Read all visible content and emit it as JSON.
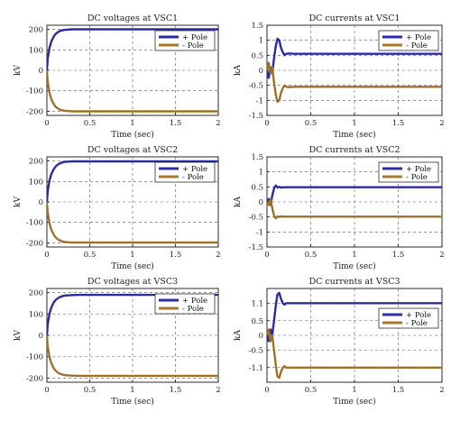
{
  "colors": {
    "plus_pole": "#2b2ea6",
    "minus_pole": "#a9782f"
  },
  "chart_data": [
    {
      "type": "line",
      "title": "DC voltages at VSC1",
      "xlabel": "Time (sec)",
      "ylabel": "kV",
      "xlim": [
        0,
        2
      ],
      "ylim": [
        -220,
        220
      ],
      "xticks": [
        0,
        0.5,
        1,
        1.5,
        2
      ],
      "xtick_labels": [
        "0",
        "0.5",
        "1",
        "1.5",
        "2"
      ],
      "yticks": [
        200,
        100,
        0,
        -100,
        -200
      ],
      "ytick_labels": [
        "200",
        "100",
        "0",
        "-100",
        "-200"
      ],
      "grid": true,
      "legend_position": "top-right",
      "series": [
        {
          "name": "+ Pole",
          "x": [
            0,
            0.01,
            0.03,
            0.05,
            0.08,
            0.1,
            0.13,
            0.16,
            0.2,
            0.25,
            0.3,
            0.4,
            2
          ],
          "y": [
            0,
            60,
            110,
            140,
            165,
            177,
            187,
            193,
            197,
            199,
            200,
            200,
            200
          ]
        },
        {
          "name": "- Pole",
          "x": [
            0,
            0.01,
            0.03,
            0.05,
            0.08,
            0.1,
            0.13,
            0.16,
            0.2,
            0.25,
            0.3,
            0.4,
            2
          ],
          "y": [
            0,
            -60,
            -110,
            -140,
            -165,
            -177,
            -187,
            -193,
            -197,
            -199,
            -200,
            -200,
            -200
          ]
        }
      ]
    },
    {
      "type": "line",
      "title": "DC currents at VSC1",
      "xlabel": "Time (sec)",
      "ylabel": "kA",
      "xlim": [
        0,
        2
      ],
      "ylim": [
        -1.5,
        1.5
      ],
      "xticks": [
        0,
        0.5,
        1,
        1.5,
        2
      ],
      "xtick_labels": [
        "0",
        "0.5",
        "1",
        "1.5",
        "2"
      ],
      "yticks": [
        1.5,
        1,
        0.5,
        0,
        -0.5,
        -1,
        -1.5
      ],
      "ytick_labels": [
        "1.5",
        "1",
        "0.5",
        "0",
        "-0.5",
        "-1",
        "-1.5"
      ],
      "grid": true,
      "legend_position": "top-right",
      "series": [
        {
          "name": "+ Pole",
          "x": [
            0,
            0.02,
            0.04,
            0.06,
            0.08,
            0.1,
            0.12,
            0.14,
            0.16,
            0.18,
            0.2,
            0.22,
            0.25,
            0.3,
            2
          ],
          "y": [
            0,
            -0.25,
            0.1,
            -0.1,
            0.4,
            0.8,
            1.05,
            1.0,
            0.75,
            0.6,
            0.5,
            0.55,
            0.56,
            0.55,
            0.55
          ]
        },
        {
          "name": "- Pole",
          "x": [
            0,
            0.02,
            0.04,
            0.06,
            0.08,
            0.1,
            0.12,
            0.14,
            0.16,
            0.18,
            0.2,
            0.22,
            0.25,
            0.3,
            2
          ],
          "y": [
            0,
            0.25,
            -0.1,
            0.1,
            -0.4,
            -0.8,
            -1.05,
            -1.0,
            -0.75,
            -0.6,
            -0.5,
            -0.55,
            -0.56,
            -0.55,
            -0.55
          ]
        }
      ]
    },
    {
      "type": "line",
      "title": "DC voltages at VSC2",
      "xlabel": "Time (sec)",
      "ylabel": "kV",
      "xlim": [
        0,
        2
      ],
      "ylim": [
        -220,
        220
      ],
      "xticks": [
        0,
        0.5,
        1,
        1.5,
        2
      ],
      "xtick_labels": [
        "0",
        "0.5",
        "1",
        "1.5",
        "2"
      ],
      "yticks": [
        200,
        100,
        0,
        -100,
        -200
      ],
      "ytick_labels": [
        "200",
        "100",
        "0",
        "-100",
        "-200"
      ],
      "grid": true,
      "legend_position": "top-right",
      "series": [
        {
          "name": "+ Pole",
          "x": [
            0,
            0.01,
            0.03,
            0.05,
            0.08,
            0.1,
            0.13,
            0.16,
            0.2,
            0.25,
            0.3,
            0.4,
            2
          ],
          "y": [
            0,
            55,
            105,
            135,
            160,
            172,
            183,
            190,
            195,
            197,
            198,
            198,
            198
          ]
        },
        {
          "name": "- Pole",
          "x": [
            0,
            0.01,
            0.03,
            0.05,
            0.08,
            0.1,
            0.13,
            0.16,
            0.2,
            0.25,
            0.3,
            0.4,
            2
          ],
          "y": [
            0,
            -55,
            -105,
            -135,
            -160,
            -172,
            -183,
            -190,
            -195,
            -197,
            -198,
            -198,
            -198
          ]
        }
      ]
    },
    {
      "type": "line",
      "title": "DC currents at VSC2",
      "xlabel": "Time (sec)",
      "ylabel": "kA",
      "xlim": [
        0,
        2
      ],
      "ylim": [
        -1.5,
        1.5
      ],
      "xticks": [
        0,
        0.5,
        1,
        1.5,
        2
      ],
      "xtick_labels": [
        "0",
        "0.5",
        "1",
        "1.5",
        "2"
      ],
      "yticks": [
        1.5,
        1,
        0.5,
        0,
        -0.5,
        -1,
        -1.5
      ],
      "ytick_labels": [
        "1.5",
        "1",
        "0.5",
        "0",
        "-0.5",
        "-1",
        "-1.5"
      ],
      "grid": true,
      "legend_position": "top-right",
      "series": [
        {
          "name": "+ Pole",
          "x": [
            0,
            0.02,
            0.04,
            0.06,
            0.08,
            0.1,
            0.12,
            0.14,
            0.16,
            0.2,
            0.25,
            0.3,
            2
          ],
          "y": [
            0,
            0.1,
            -0.1,
            0.2,
            0.45,
            0.55,
            0.48,
            0.5,
            0.48,
            0.49,
            0.49,
            0.49,
            0.49
          ]
        },
        {
          "name": "- Pole",
          "x": [
            0,
            0.02,
            0.04,
            0.06,
            0.08,
            0.1,
            0.12,
            0.14,
            0.16,
            0.2,
            0.25,
            0.3,
            2
          ],
          "y": [
            0,
            -0.1,
            0.1,
            -0.2,
            -0.45,
            -0.55,
            -0.48,
            -0.5,
            -0.48,
            -0.49,
            -0.49,
            -0.49,
            -0.49
          ]
        }
      ]
    },
    {
      "type": "line",
      "title": "DC voltages at VSC3",
      "xlabel": "Time (sec)",
      "ylabel": "kV",
      "xlim": [
        0,
        2
      ],
      "ylim": [
        -220,
        220
      ],
      "xticks": [
        0,
        0.5,
        1,
        1.5,
        2
      ],
      "xtick_labels": [
        "0",
        "0.5",
        "1",
        "1.5",
        "2"
      ],
      "yticks": [
        200,
        100,
        0,
        -100,
        -200
      ],
      "ytick_labels": [
        "200",
        "100",
        "0",
        "-100",
        "-200"
      ],
      "grid": true,
      "legend_position": "top-right",
      "series": [
        {
          "name": "+ Pole",
          "x": [
            0,
            0.01,
            0.03,
            0.05,
            0.08,
            0.1,
            0.13,
            0.16,
            0.2,
            0.25,
            0.3,
            0.4,
            2
          ],
          "y": [
            0,
            55,
            102,
            130,
            155,
            165,
            175,
            181,
            186,
            188,
            189,
            190,
            190
          ]
        },
        {
          "name": "- Pole",
          "x": [
            0,
            0.01,
            0.03,
            0.05,
            0.08,
            0.1,
            0.13,
            0.16,
            0.2,
            0.25,
            0.3,
            0.4,
            2
          ],
          "y": [
            0,
            -55,
            -102,
            -130,
            -155,
            -165,
            -175,
            -181,
            -186,
            -188,
            -189,
            -190,
            -190
          ]
        }
      ]
    },
    {
      "type": "line",
      "title": "DC currents at VSC3",
      "xlabel": "Time (sec)",
      "ylabel": "kA",
      "xlim": [
        0,
        2
      ],
      "ylim": [
        -1.6,
        1.6
      ],
      "xticks": [
        0,
        0.5,
        1,
        1.5,
        2
      ],
      "xtick_labels": [
        "0",
        "0.5",
        "1",
        "1.5",
        "2"
      ],
      "yticks": [
        1.1,
        0.5,
        0,
        -0.5,
        -1.1
      ],
      "ytick_labels": [
        "1.1",
        "0.5",
        "0",
        "-0.5",
        "-1.1"
      ],
      "grid": true,
      "legend_position": "right",
      "series": [
        {
          "name": "+ Pole",
          "x": [
            0,
            0.02,
            0.04,
            0.06,
            0.08,
            0.1,
            0.12,
            0.14,
            0.16,
            0.18,
            0.2,
            0.22,
            0.25,
            0.3,
            2
          ],
          "y": [
            0,
            -0.2,
            0.2,
            0.0,
            0.5,
            1.0,
            1.4,
            1.45,
            1.25,
            1.1,
            1.05,
            1.1,
            1.1,
            1.1,
            1.1
          ]
        },
        {
          "name": "- Pole",
          "x": [
            0,
            0.02,
            0.04,
            0.06,
            0.08,
            0.1,
            0.12,
            0.14,
            0.16,
            0.18,
            0.2,
            0.22,
            0.25,
            0.3,
            2
          ],
          "y": [
            0,
            0.2,
            -0.2,
            0.0,
            -0.5,
            -1.0,
            -1.4,
            -1.45,
            -1.25,
            -1.1,
            -1.05,
            -1.1,
            -1.1,
            -1.1,
            -1.1
          ]
        }
      ]
    }
  ]
}
